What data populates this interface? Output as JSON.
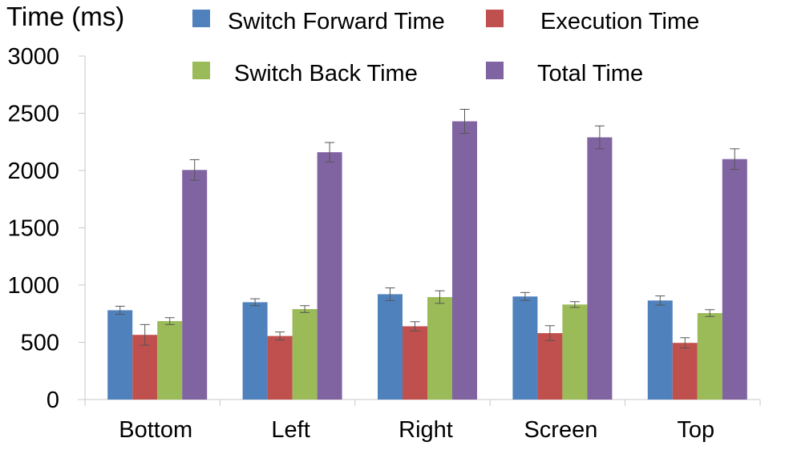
{
  "chart_data": {
    "type": "bar",
    "ylabel": "Time (ms)",
    "categories": [
      "Bottom",
      "Left",
      "Right",
      "Screen",
      "Top"
    ],
    "ylim": [
      0,
      3000
    ],
    "yticks": [
      0,
      500,
      1000,
      1500,
      2000,
      2500,
      3000
    ],
    "legend": "top",
    "grid": false,
    "series": [
      {
        "name": "Switch Forward Time",
        "color": "#4F81BD",
        "values": [
          780,
          850,
          920,
          900,
          865
        ],
        "errors": [
          35,
          30,
          55,
          35,
          40
        ]
      },
      {
        "name": "Execution Time",
        "color": "#C0504D",
        "values": [
          565,
          555,
          640,
          580,
          495
        ],
        "errors": [
          90,
          35,
          40,
          65,
          45
        ]
      },
      {
        "name": "Switch Back Time",
        "color": "#9BBB59",
        "values": [
          685,
          790,
          895,
          830,
          755
        ],
        "errors": [
          30,
          30,
          55,
          25,
          30
        ]
      },
      {
        "name": "Total Time",
        "color": "#8064A2",
        "values": [
          2005,
          2160,
          2430,
          2290,
          2100
        ],
        "errors": [
          90,
          85,
          105,
          100,
          90
        ]
      }
    ]
  }
}
